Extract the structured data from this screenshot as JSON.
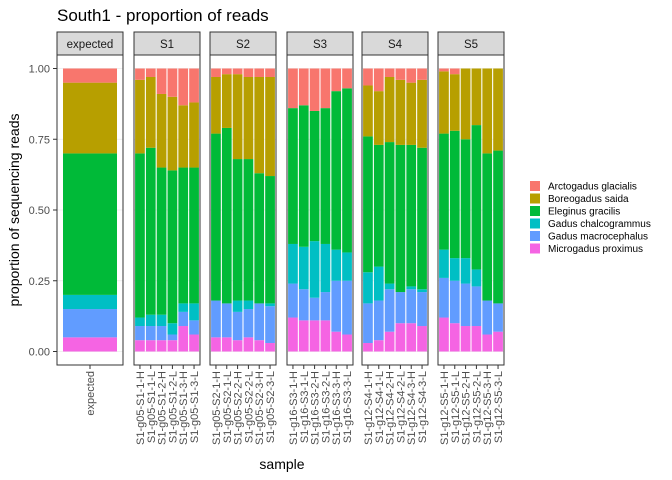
{
  "chart_data": {
    "type": "bar",
    "stacked": true,
    "title": "South1 - proportion of reads",
    "xlabel": "sample",
    "ylabel": "proportion of sequencing reads",
    "ylim": [
      0,
      1
    ],
    "yticks": [
      "0.00",
      "0.25",
      "0.50",
      "0.75",
      "1.00"
    ],
    "legend_position": "right",
    "species": [
      {
        "name": "Arctogadus glacialis",
        "color": "#F8766D"
      },
      {
        "name": "Boreogadus saida",
        "color": "#B79F00"
      },
      {
        "name": "Eleginus gracilis",
        "color": "#00BA38"
      },
      {
        "name": "Gadus chalcogrammus",
        "color": "#00BFC4"
      },
      {
        "name": "Gadus macrocephalus",
        "color": "#619CFF"
      },
      {
        "name": "Microgadus proximus",
        "color": "#F564E3"
      }
    ],
    "stack_order_bottom_to_top": [
      "Microgadus proximus",
      "Gadus macrocephalus",
      "Gadus chalcogrammus",
      "Eleginus gracilis",
      "Boreogadus saida",
      "Arctogadus glacialis"
    ],
    "facets": [
      {
        "label": "expected",
        "bars": [
          {
            "sample": "expected",
            "values": [
              0.05,
              0.25,
              0.5,
              0.05,
              0.1,
              0.05
            ]
          }
        ]
      },
      {
        "label": "S1",
        "bars": [
          {
            "sample": "S1-g05-S1-1-H",
            "values": [
              0.04,
              0.26,
              0.58,
              0.03,
              0.05,
              0.04
            ]
          },
          {
            "sample": "S1-g05-S1-1-L",
            "values": [
              0.03,
              0.25,
              0.59,
              0.04,
              0.05,
              0.04
            ]
          },
          {
            "sample": "S1-g05-S1-2-H",
            "values": [
              0.09,
              0.26,
              0.52,
              0.04,
              0.05,
              0.04
            ]
          },
          {
            "sample": "S1-g05-S1-2-L",
            "values": [
              0.1,
              0.26,
              0.54,
              0.04,
              0.02,
              0.04
            ]
          },
          {
            "sample": "S1-g05-S1-3-H",
            "values": [
              0.13,
              0.22,
              0.48,
              0.03,
              0.05,
              0.09
            ]
          },
          {
            "sample": "S1-g05-S1-3-L",
            "values": [
              0.12,
              0.23,
              0.48,
              0.06,
              0.05,
              0.06
            ]
          }
        ]
      },
      {
        "label": "S2",
        "bars": [
          {
            "sample": "S1-g05-S2-1-H",
            "values": [
              0.03,
              0.2,
              0.59,
              0.0,
              0.13,
              0.05
            ]
          },
          {
            "sample": "S1-g05-S2-1-L",
            "values": [
              0.02,
              0.19,
              0.62,
              0.0,
              0.12,
              0.05
            ]
          },
          {
            "sample": "S1-g05-S2-2-H",
            "values": [
              0.02,
              0.3,
              0.5,
              0.04,
              0.1,
              0.04
            ]
          },
          {
            "sample": "S1-g05-S2-2-L",
            "values": [
              0.03,
              0.29,
              0.5,
              0.03,
              0.1,
              0.05
            ]
          },
          {
            "sample": "S1-g05-S2-3-H",
            "values": [
              0.03,
              0.34,
              0.46,
              0.0,
              0.13,
              0.04
            ]
          },
          {
            "sample": "S1-g05-S2-3-L",
            "values": [
              0.03,
              0.35,
              0.45,
              0.01,
              0.13,
              0.03
            ]
          }
        ]
      },
      {
        "label": "S3",
        "bars": [
          {
            "sample": "S1-g16-S3-1-H",
            "values": [
              0.14,
              0.0,
              0.48,
              0.14,
              0.12,
              0.12
            ]
          },
          {
            "sample": "S1-g16-S3-1-L",
            "values": [
              0.13,
              0.0,
              0.5,
              0.15,
              0.11,
              0.11
            ]
          },
          {
            "sample": "S1-g16-S3-2-H",
            "values": [
              0.15,
              0.0,
              0.46,
              0.2,
              0.08,
              0.11
            ]
          },
          {
            "sample": "S1-g16-S3-2-L",
            "values": [
              0.14,
              0.0,
              0.48,
              0.17,
              0.1,
              0.11
            ]
          },
          {
            "sample": "S1-g16-S3-3-H",
            "values": [
              0.08,
              0.0,
              0.56,
              0.11,
              0.18,
              0.07
            ]
          },
          {
            "sample": "S1-g16-S3-3-L",
            "values": [
              0.07,
              0.0,
              0.58,
              0.1,
              0.19,
              0.06
            ]
          }
        ]
      },
      {
        "label": "S4",
        "bars": [
          {
            "sample": "S1-g12-S4-1-H",
            "values": [
              0.06,
              0.18,
              0.48,
              0.11,
              0.14,
              0.03
            ]
          },
          {
            "sample": "S1-g12-S4-1-L",
            "values": [
              0.08,
              0.19,
              0.43,
              0.12,
              0.14,
              0.04
            ]
          },
          {
            "sample": "S1-g12-S4-2-H",
            "values": [
              0.03,
              0.23,
              0.5,
              0.02,
              0.15,
              0.07
            ]
          },
          {
            "sample": "S1-g12-S4-2-L",
            "values": [
              0.04,
              0.23,
              0.52,
              0.0,
              0.11,
              0.1
            ]
          },
          {
            "sample": "S1-g12-S4-3-H",
            "values": [
              0.05,
              0.22,
              0.5,
              0.01,
              0.12,
              0.1
            ]
          },
          {
            "sample": "S1-g12-S4-3-L",
            "values": [
              0.04,
              0.24,
              0.5,
              0.01,
              0.12,
              0.09
            ]
          }
        ]
      },
      {
        "label": "S5",
        "bars": [
          {
            "sample": "S1-g12-S5-1-H",
            "values": [
              0.01,
              0.22,
              0.41,
              0.1,
              0.14,
              0.12
            ]
          },
          {
            "sample": "S1-g12-S5-1-L",
            "values": [
              0.02,
              0.2,
              0.45,
              0.08,
              0.15,
              0.1
            ]
          },
          {
            "sample": "S1-g12-S5-2-H",
            "values": [
              0.0,
              0.25,
              0.42,
              0.09,
              0.15,
              0.09
            ]
          },
          {
            "sample": "S1-g12-S5-2-L",
            "values": [
              0.0,
              0.2,
              0.51,
              0.06,
              0.14,
              0.09
            ]
          },
          {
            "sample": "S1-g12-S5-3-H",
            "values": [
              0.0,
              0.3,
              0.52,
              0.0,
              0.12,
              0.06
            ]
          },
          {
            "sample": "S1-g12-S5-3-L",
            "values": [
              0.0,
              0.29,
              0.54,
              0.0,
              0.1,
              0.07
            ]
          }
        ]
      }
    ]
  }
}
